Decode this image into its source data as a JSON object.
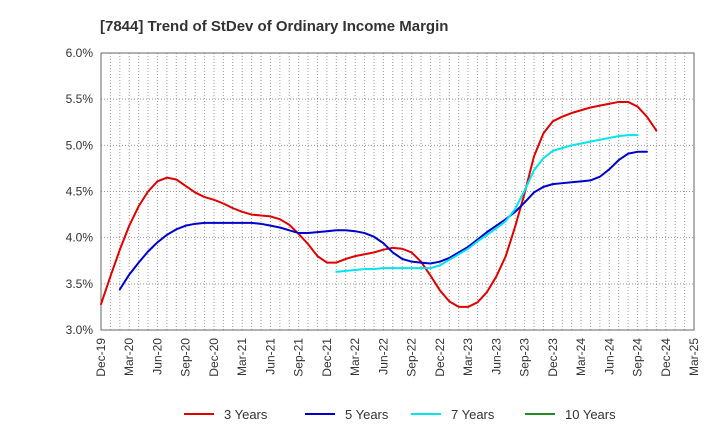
{
  "chart_data": {
    "type": "line",
    "title": "[7844]  Trend of StDev of Ordinary Income Margin",
    "xlabel": "",
    "ylabel": "",
    "ylim": [
      3.0,
      6.0
    ],
    "y_ticks": [
      "3.0%",
      "3.5%",
      "4.0%",
      "4.5%",
      "5.0%",
      "5.5%",
      "6.0%"
    ],
    "x_ticks": [
      "Dec-19",
      "Mar-20",
      "Jun-20",
      "Sep-20",
      "Dec-20",
      "Mar-21",
      "Jun-21",
      "Sep-21",
      "Dec-21",
      "Mar-22",
      "Jun-22",
      "Sep-22",
      "Dec-22",
      "Mar-23",
      "Jun-23",
      "Sep-23",
      "Dec-23",
      "Mar-24",
      "Jun-24",
      "Sep-24",
      "Dec-24",
      "Mar-25"
    ],
    "grid": true,
    "legend_position": "bottom",
    "series": [
      {
        "name": "3 Years",
        "color": "#e00000",
        "start_index": 0,
        "values": [
          3.28,
          3.58,
          3.87,
          4.13,
          4.34,
          4.5,
          4.61,
          4.65,
          4.63,
          4.56,
          4.49,
          4.44,
          4.41,
          4.37,
          4.32,
          4.28,
          4.25,
          4.24,
          4.23,
          4.2,
          4.14,
          4.04,
          3.93,
          3.8,
          3.73,
          3.73,
          3.77,
          3.8,
          3.82,
          3.84,
          3.87,
          3.89,
          3.88,
          3.84,
          3.74,
          3.59,
          3.43,
          3.31,
          3.25,
          3.25,
          3.3,
          3.41,
          3.58,
          3.8,
          4.12,
          4.48,
          4.88,
          5.13,
          5.26,
          5.31,
          5.35,
          5.38,
          5.41,
          5.43,
          5.45,
          5.47,
          5.47,
          5.42,
          5.31,
          5.16
        ]
      },
      {
        "name": "5 Years",
        "color": "#0000cc",
        "start_index": 2,
        "values": [
          3.44,
          3.6,
          3.73,
          3.85,
          3.95,
          4.03,
          4.09,
          4.13,
          4.15,
          4.16,
          4.16,
          4.16,
          4.16,
          4.16,
          4.16,
          4.15,
          4.13,
          4.11,
          4.08,
          4.05,
          4.05,
          4.06,
          4.07,
          4.08,
          4.08,
          4.07,
          4.05,
          4.01,
          3.94,
          3.84,
          3.77,
          3.74,
          3.73,
          3.72,
          3.74,
          3.78,
          3.84,
          3.9,
          3.98,
          4.06,
          4.13,
          4.2,
          4.28,
          4.38,
          4.49,
          4.55,
          4.58,
          4.59,
          4.6,
          4.61,
          4.62,
          4.66,
          4.74,
          4.84,
          4.91,
          4.93,
          4.93
        ]
      },
      {
        "name": "7 Years",
        "color": "#00e5ee",
        "start_index": 25,
        "values": [
          3.63,
          3.64,
          3.65,
          3.66,
          3.66,
          3.67,
          3.67,
          3.67,
          3.67,
          3.67,
          3.67,
          3.7,
          3.76,
          3.82,
          3.88,
          3.96,
          4.03,
          4.1,
          4.18,
          4.31,
          4.51,
          4.73,
          4.86,
          4.94,
          4.97,
          5.0,
          5.02,
          5.04,
          5.06,
          5.08,
          5.1,
          5.11,
          5.11
        ]
      },
      {
        "name": "10 Years",
        "color": "#228b22",
        "start_index": 0,
        "values": []
      }
    ]
  }
}
